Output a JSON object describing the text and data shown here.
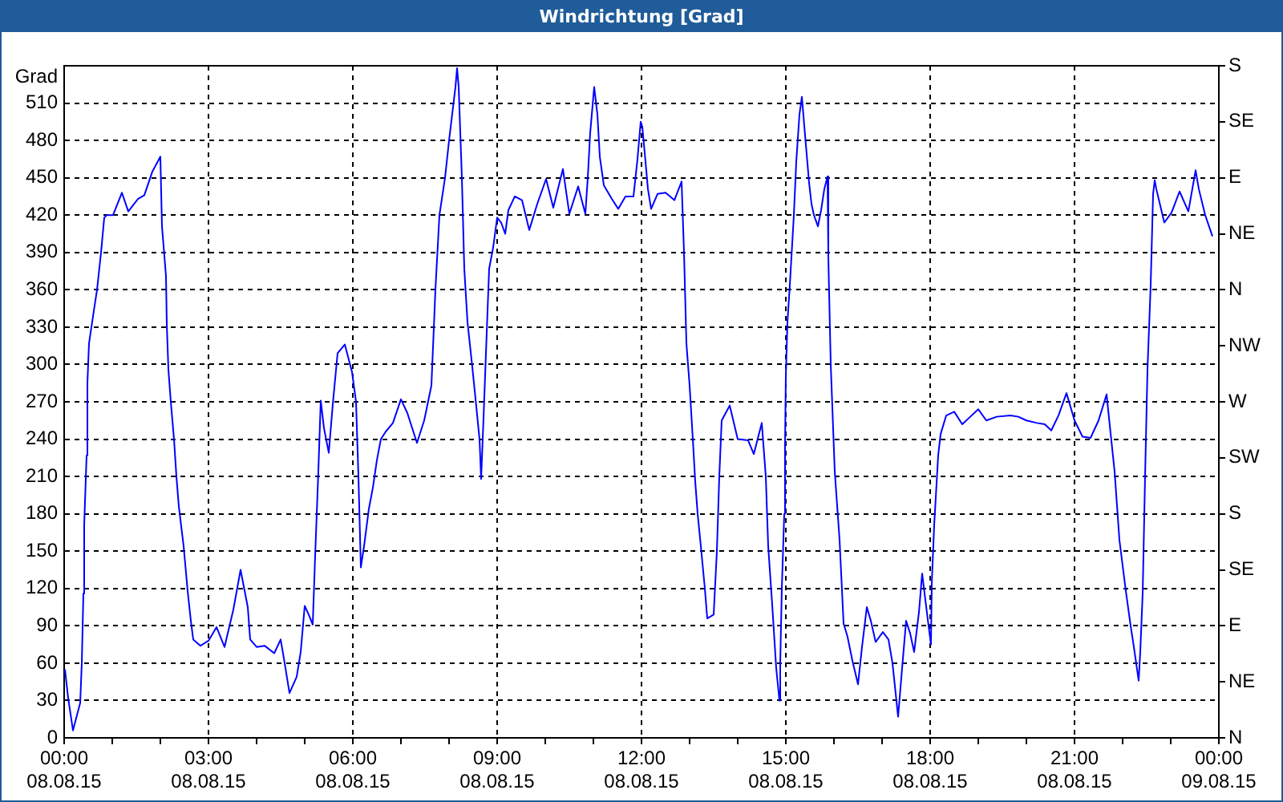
{
  "chart_data": {
    "type": "line",
    "title": "Windrichtung [Grad]",
    "ylabel": "Grad",
    "x": [
      "--08-08T00:01",
      "--08-08T00:05",
      "--08-08T00:11",
      "--08-08T00:20",
      "--08-08T00:22",
      "--08-08T00:24",
      "--08-08T00:25",
      "--08-08T00:28",
      "--08-08T00:29",
      "--08-08T00:31",
      "--08-08T00:37",
      "--08-08T00:41",
      "--08-08T00:46",
      "--08-08T00:50",
      "--08-08T00:53",
      "--08-08T01:01",
      "--08-08T01:12",
      "--08-08T01:20",
      "--08-08T01:32",
      "--08-08T01:40",
      "--08-08T01:50",
      "--08-08T02:00",
      "--08-08T02:02",
      "--08-08T02:07",
      "--08-08T02:08",
      "--08-08T02:10",
      "--08-08T02:13",
      "--08-08T02:17",
      "--08-08T02:20",
      "--08-08T02:23",
      "--08-08T02:29",
      "--08-08T02:34",
      "--08-08T02:38",
      "--08-08T02:41",
      "--08-08T02:50",
      "--08-08T03:00",
      "--08-08T03:10",
      "--08-08T03:20",
      "--08-08T03:31",
      "--08-08T03:40",
      "--08-08T03:49",
      "--08-08T03:52",
      "--08-08T04:00",
      "--08-08T04:10",
      "--08-08T04:22",
      "--08-08T04:30",
      "--08-08T04:35",
      "--08-08T04:41",
      "--08-08T04:50",
      "--08-08T04:55",
      "--08-08T05:00",
      "--08-08T05:05",
      "--08-08T05:10",
      "--08-08T05:13",
      "--08-08T05:17",
      "--08-08T05:20",
      "--08-08T05:24",
      "--08-08T05:30",
      "--08-08T05:35",
      "--08-08T05:41",
      "--08-08T05:50",
      "--08-08T05:59",
      "--08-08T06:04",
      "--08-08T06:07",
      "--08-08T06:10",
      "--08-08T06:14",
      "--08-08T06:20",
      "--08-08T06:25",
      "--08-08T06:30",
      "--08-08T06:35",
      "--08-08T06:41",
      "--08-08T06:50",
      "--08-08T07:00",
      "--08-08T07:08",
      "--08-08T07:20",
      "--08-08T07:29",
      "--08-08T07:38",
      "--08-08T07:43",
      "--08-08T07:48",
      "--08-08T07:55",
      "--08-08T08:00",
      "--08-08T08:08",
      "--08-08T08:10",
      "--08-08T08:12",
      "--08-08T08:16",
      "--08-08T08:19",
      "--08-08T08:23",
      "--08-08T08:29",
      "--08-08T08:34",
      "--08-08T08:38",
      "--08-08T08:40",
      "--08-08T08:43",
      "--08-08T08:47",
      "--08-08T08:50",
      "--08-08T08:55",
      "--08-08T09:00",
      "--08-08T09:05",
      "--08-08T09:10",
      "--08-08T09:14",
      "--08-08T09:22",
      "--08-08T09:31",
      "--08-08T09:40",
      "--08-08T09:50",
      "--08-08T10:01",
      "--08-08T10:10",
      "--08-08T10:22",
      "--08-08T10:30",
      "--08-08T10:41",
      "--08-08T10:50",
      "--08-08T10:53",
      "--08-08T10:56",
      "--08-08T11:01",
      "--08-08T11:05",
      "--08-08T11:08",
      "--08-08T11:13",
      "--08-08T11:23",
      "--08-08T11:31",
      "--08-08T11:40",
      "--08-08T11:50",
      "--08-08T11:55",
      "--08-08T11:59",
      "--08-08T12:01",
      "--08-08T12:05",
      "--08-08T12:08",
      "--08-08T12:12",
      "--08-08T12:20",
      "--08-08T12:30",
      "--08-08T12:41",
      "--08-08T12:50",
      "--08-08T12:53",
      "--08-08T12:56",
      "--08-08T13:00",
      "--08-08T13:04",
      "--08-08T13:07",
      "--08-08T13:10",
      "--08-08T13:14",
      "--08-08T13:19",
      "--08-08T13:22",
      "--08-08T13:30",
      "--08-08T13:34",
      "--08-08T13:37",
      "--08-08T13:40",
      "--08-08T13:50",
      "--08-08T14:00",
      "--08-08T14:13",
      "--08-08T14:20",
      "--08-08T14:30",
      "--08-08T14:35",
      "--08-08T14:38",
      "--08-08T14:43",
      "--08-08T14:48",
      "--08-08T14:52",
      "--08-08T14:53",
      "--08-08T14:55",
      "--08-08T14:58",
      "--08-08T14:59",
      "--08-08T15:00",
      "--08-08T15:02",
      "--08-08T15:05",
      "--08-08T15:10",
      "--08-08T15:13",
      "--08-08T15:17",
      "--08-08T15:20",
      "--08-08T15:24",
      "--08-08T15:29",
      "--08-08T15:32",
      "--08-08T15:35",
      "--08-08T15:40",
      "--08-08T15:44",
      "--08-08T15:48",
      "--08-08T15:52",
      "--08-08T15:53",
      "--08-08T15:56",
      "--08-08T16:01",
      "--08-08T16:07",
      "--08-08T16:12",
      "--08-08T16:17",
      "--08-08T16:23",
      "--08-08T16:30",
      "--08-08T16:35",
      "--08-08T16:41",
      "--08-08T16:46",
      "--08-08T16:52",
      "--08-08T17:01",
      "--08-08T17:08",
      "--08-08T17:13",
      "--08-08T17:20",
      "--08-08T17:25",
      "--08-08T17:30",
      "--08-08T17:35",
      "--08-08T17:40",
      "--08-08T17:46",
      "--08-08T17:50",
      "--08-08T17:53",
      "--08-08T17:58",
      "--08-08T18:01",
      "--08-08T18:02",
      "--08-08T18:05",
      "--08-08T18:10",
      "--08-08T18:13",
      "--08-08T18:20",
      "--08-08T18:30",
      "--08-08T18:40",
      "--08-08T18:50",
      "--08-08T19:00",
      "--08-08T19:10",
      "--08-08T19:23",
      "--08-08T19:40",
      "--08-08T19:50",
      "--08-08T20:00",
      "--08-08T20:13",
      "--08-08T20:23",
      "--08-08T20:31",
      "--08-08T20:40",
      "--08-08T20:50",
      "--08-08T21:00",
      "--08-08T21:10",
      "--08-08T21:20",
      "--08-08T21:30",
      "--08-08T21:40",
      "--08-08T21:43",
      "--08-08T21:50",
      "--08-08T21:56",
      "--08-08T22:04",
      "--08-08T22:10",
      "--08-08T22:14",
      "--08-08T22:20",
      "--08-08T22:22",
      "--08-08T22:25",
      "--08-08T22:28",
      "--08-08T22:31",
      "--08-08T22:35",
      "--08-08T22:38",
      "--08-08T22:40",
      "--08-08T22:42",
      "--08-08T22:52",
      "--08-08T23:01",
      "--08-08T23:11",
      "--08-08T23:22",
      "--08-08T23:31",
      "--08-08T23:35",
      "--08-08T23:43",
      "--08-08T23:52"
    ],
    "values": [
      55,
      32,
      6,
      28,
      60,
      116,
      171,
      227,
      285,
      317,
      343,
      360,
      390,
      418,
      420,
      420,
      438,
      423,
      433,
      436,
      455,
      467,
      411,
      371,
      332,
      296,
      270,
      240,
      210,
      186,
      154,
      118,
      94,
      79,
      74,
      78,
      89,
      73,
      103,
      135,
      105,
      79,
      73,
      74,
      68,
      79,
      60,
      36,
      49,
      69,
      106,
      99,
      91,
      146,
      214,
      271,
      249,
      229,
      268,
      309,
      316,
      294,
      270,
      210,
      137,
      154,
      184,
      201,
      223,
      240,
      246,
      253,
      272,
      261,
      237,
      255,
      283,
      360,
      420,
      450,
      480,
      523,
      538,
      523,
      450,
      377,
      334,
      298,
      266,
      240,
      208,
      257,
      326,
      377,
      394,
      418,
      414,
      405,
      424,
      435,
      432,
      408,
      429,
      449,
      426,
      457,
      421,
      443,
      421,
      450,
      486,
      523,
      501,
      467,
      444,
      433,
      425,
      435,
      435,
      465,
      495,
      491,
      463,
      441,
      425,
      437,
      438,
      432,
      447,
      390,
      317,
      283,
      240,
      206,
      180,
      154,
      120,
      96,
      99,
      150,
      210,
      255,
      267,
      240,
      239,
      228,
      253,
      210,
      154,
      107,
      56,
      30,
      60,
      120,
      180,
      236,
      291,
      334,
      364,
      420,
      463,
      501,
      515,
      484,
      446,
      429,
      420,
      411,
      424,
      441,
      451,
      386,
      300,
      214,
      159,
      92,
      81,
      62,
      43,
      73,
      105,
      94,
      77,
      85,
      79,
      60,
      17,
      56,
      94,
      84,
      69,
      101,
      132,
      116,
      90,
      75,
      124,
      171,
      227,
      244,
      259,
      262,
      252,
      258,
      264,
      255,
      258,
      259,
      258,
      255,
      253,
      252,
      247,
      259,
      277,
      255,
      242,
      241,
      255,
      276,
      257,
      214,
      159,
      118,
      90,
      73,
      46,
      69,
      116,
      210,
      296,
      364,
      437,
      448,
      441,
      414,
      422,
      439,
      423,
      456,
      441,
      420,
      403
    ],
    "color": "#0000ff",
    "marker": "none",
    "line_style": "solid",
    "legend": false,
    "grid": true,
    "xlim": [
      "--08-08T00:00",
      "--08-09T00:00"
    ],
    "xticks": [
      {
        "value": "--08-08T00:00",
        "label": "00:00\n08.08.15"
      },
      {
        "value": "--08-08T01:00",
        "label": null
      },
      {
        "value": "--08-08T02:00",
        "label": null
      },
      {
        "value": "--08-08T03:00",
        "label": "03:00\n08.08.15"
      },
      {
        "value": "--08-08T04:00",
        "label": null
      },
      {
        "value": "--08-08T05:00",
        "label": null
      },
      {
        "value": "--08-08T06:00",
        "label": "06:00\n08.08.15"
      },
      {
        "value": "--08-08T07:00",
        "label": null
      },
      {
        "value": "--08-08T08:00",
        "label": null
      },
      {
        "value": "--08-08T09:00",
        "label": "09:00\n08.08.15"
      },
      {
        "value": "--08-08T10:00",
        "label": null
      },
      {
        "value": "--08-08T11:00",
        "label": null
      },
      {
        "value": "--08-08T12:00",
        "label": "12:00\n08.08.15"
      },
      {
        "value": "--08-08T13:00",
        "label": null
      },
      {
        "value": "--08-08T14:00",
        "label": null
      },
      {
        "value": "--08-08T15:00",
        "label": "15:00\n08.08.15"
      },
      {
        "value": "--08-08T16:00",
        "label": null
      },
      {
        "value": "--08-08T17:00",
        "label": null
      },
      {
        "value": "--08-08T18:00",
        "label": "18:00\n08.08.15"
      },
      {
        "value": "--08-08T19:00",
        "label": null
      },
      {
        "value": "--08-08T20:00",
        "label": null
      },
      {
        "value": "--08-08T21:00",
        "label": "21:00\n08.08.15"
      },
      {
        "value": "--08-08T22:00",
        "label": null
      },
      {
        "value": "--08-08T23:00",
        "label": null
      },
      {
        "value": "--08-09T00:00",
        "label": "00:00\n09.08.15"
      }
    ],
    "ylim": [
      0,
      540
    ],
    "yticks": [
      0,
      30,
      60,
      90,
      120,
      150,
      180,
      210,
      240,
      270,
      300,
      330,
      360,
      390,
      420,
      450,
      480,
      510
    ],
    "y2_categories": [
      "S",
      "SE",
      "E",
      "NE",
      "N",
      "NW",
      "W",
      "SW",
      "S",
      "SE",
      "E",
      "NE",
      "N"
    ]
  }
}
